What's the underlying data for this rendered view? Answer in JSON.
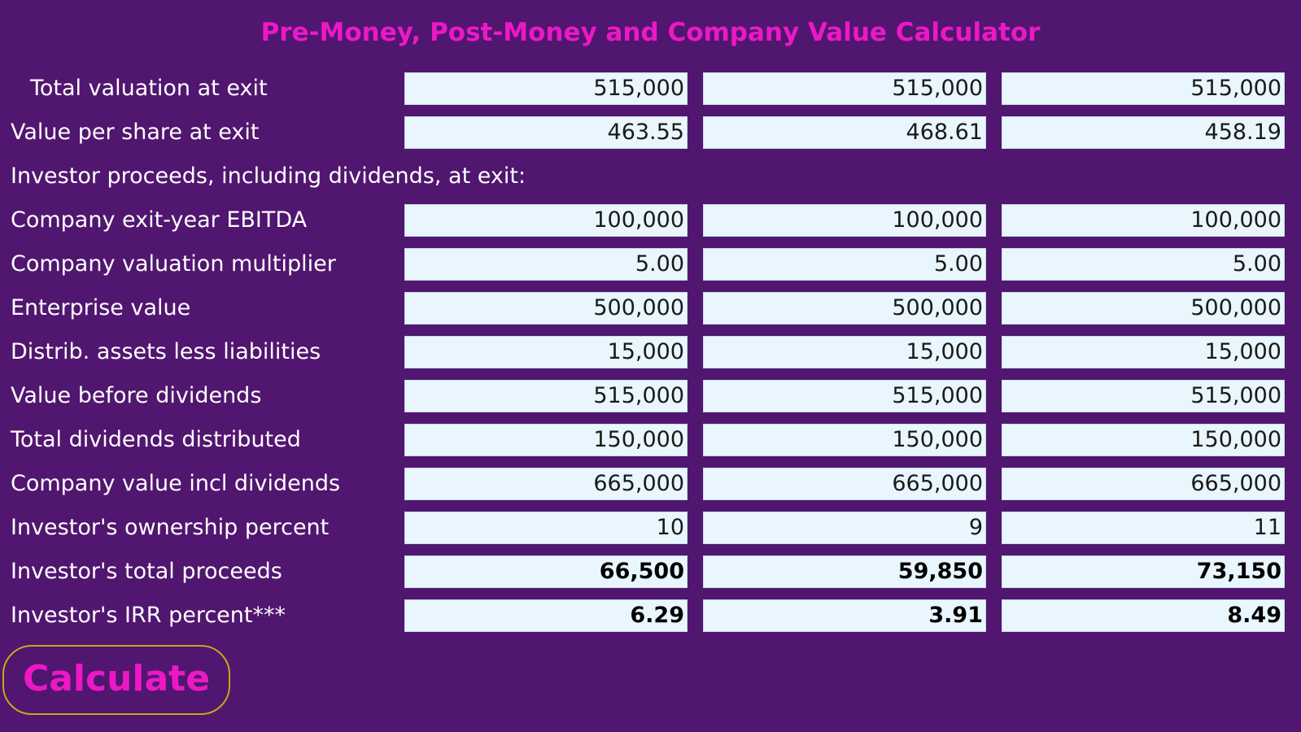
{
  "title": "Pre-Money, Post-Money and Company Value Calculator",
  "rows": [
    {
      "label": "Total valuation at exit",
      "values": [
        "515,000",
        "515,000",
        "515,000"
      ]
    },
    {
      "label": "Value per share at exit",
      "values": [
        "463.55",
        "468.61",
        "458.19"
      ]
    },
    {
      "label": "Investor proceeds, including dividends, at exit:"
    },
    {
      "label": "Company exit-year EBITDA",
      "values": [
        "100,000",
        "100,000",
        "100,000"
      ]
    },
    {
      "label": "Company valuation multiplier",
      "values": [
        "5.00",
        "5.00",
        "5.00"
      ]
    },
    {
      "label": "Enterprise value",
      "values": [
        "500,000",
        "500,000",
        "500,000"
      ]
    },
    {
      "label": "Distrib. assets less liabilities",
      "values": [
        "15,000",
        "15,000",
        "15,000"
      ]
    },
    {
      "label": "Value before dividends",
      "values": [
        "515,000",
        "515,000",
        "515,000"
      ]
    },
    {
      "label": "Total dividends distributed",
      "values": [
        "150,000",
        "150,000",
        "150,000"
      ]
    },
    {
      "label": "Company value incl dividends",
      "values": [
        "665,000",
        "665,000",
        "665,000"
      ]
    },
    {
      "label": "Investor's ownership percent",
      "values": [
        "10",
        "9",
        "11"
      ]
    },
    {
      "label": "Investor's total proceeds",
      "values": [
        "66,500",
        "59,850",
        "73,150"
      ]
    },
    {
      "label": "Investor's IRR percent***",
      "values": [
        "6.29",
        "3.91",
        "8.49"
      ]
    }
  ],
  "calculate_button": "Calculate",
  "colors": {
    "background": "#51166f",
    "accent": "#ec18c6",
    "cell_background": "#e9f6fd",
    "button_border": "#c9a61a"
  }
}
